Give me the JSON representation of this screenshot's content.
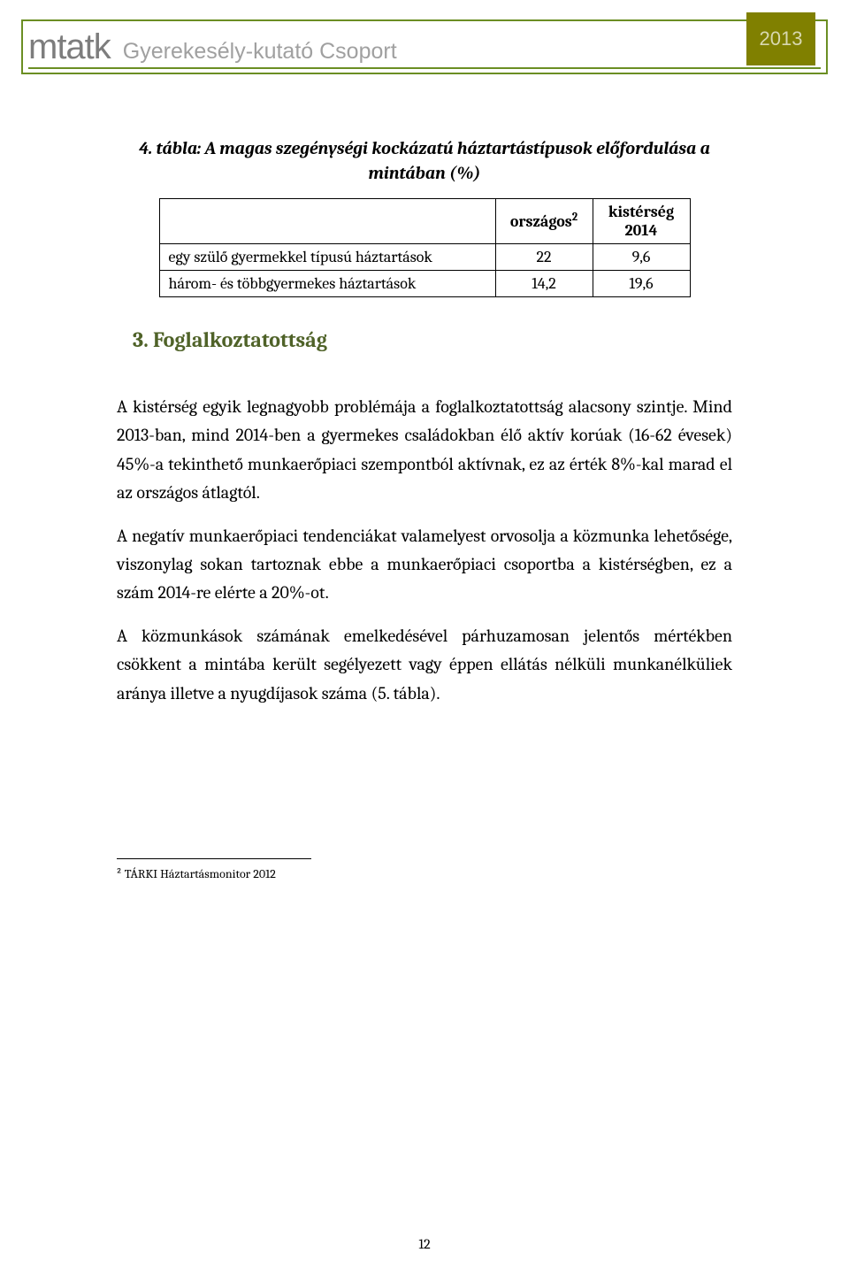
{
  "header": {
    "logo": "mtatk",
    "subtitle": "Gyerekesély-kutató Csoport",
    "year": "2013"
  },
  "table": {
    "title": "4. tábla: A magas szegénységi kockázatú háztartástípusok előfordulása a mintában (%)",
    "columns": [
      "",
      "országos²",
      "kistérség 2014"
    ],
    "rows": [
      [
        "egy szülő gyermekkel típusú háztartások",
        "22",
        "9,6"
      ],
      [
        "három- és többgyermekes háztartások",
        "14,2",
        "19,6"
      ]
    ]
  },
  "section": {
    "heading": "3. Foglalkoztatottság",
    "paragraphs": [
      "A kistérség egyik legnagyobb problémája a foglalkoztatottság alacsony szintje. Mind 2013-ban, mind 2014-ben a gyermekes családokban élő aktív korúak (16-62 évesek) 45%-a tekinthető munkaerőpiaci szempontból aktívnak, ez az érték 8%-kal marad el az országos átlagtól.",
      "A negatív munkaerőpiaci tendenciákat valamelyest orvosolja a közmunka lehetősége, viszonylag sokan tartoznak ebbe a munkaerőpiaci csoportba a kistérségben, ez a szám 2014-re elérte a 20%-ot.",
      "A közmunkások számának emelkedésével párhuzamosan jelentős mértékben csökkent a mintába került segélyezett vagy éppen ellátás nélküli munkanélküliek aránya illetve a nyugdíjasok száma (5. tábla)."
    ]
  },
  "footnote": "² TÁRKI Háztartásmonitor 2012",
  "pageNumber": "12"
}
